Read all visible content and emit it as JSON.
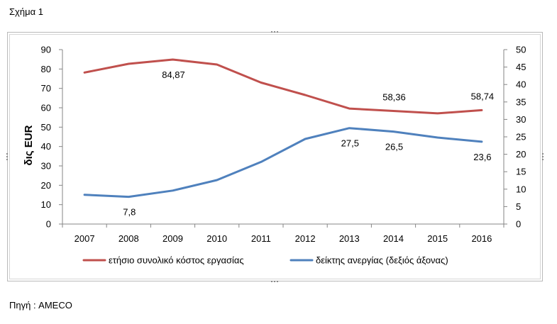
{
  "caption": "Σχήμα 1",
  "source": "Πηγή : AMECO",
  "chart_data": {
    "type": "line",
    "x": [
      "2007",
      "2008",
      "2009",
      "2010",
      "2011",
      "2012",
      "2013",
      "2014",
      "2015",
      "2016"
    ],
    "ylabel": "δις EUR",
    "ylim": [
      0,
      90
    ],
    "yticks": [
      "0",
      "10",
      "20",
      "30",
      "40",
      "50",
      "60",
      "70",
      "80",
      "90"
    ],
    "y2lim": [
      0,
      50
    ],
    "y2ticks": [
      "0",
      "5",
      "10",
      "15",
      "20",
      "25",
      "30",
      "35",
      "40",
      "45",
      "50"
    ],
    "grid": false,
    "legend": "bottom",
    "series": [
      {
        "name": "ετήσιο συνολικό κόστος εργασίας",
        "axis": "left",
        "color": "#C0504D",
        "values": [
          78.2,
          82.7,
          84.87,
          82.3,
          73.0,
          66.6,
          59.6,
          58.36,
          57.1,
          58.74
        ],
        "data_labels": [
          {
            "index": 2,
            "text": "84,87",
            "position": "below"
          },
          {
            "index": 7,
            "text": "58,36",
            "position": "above"
          },
          {
            "index": 9,
            "text": "58,74",
            "position": "above"
          }
        ]
      },
      {
        "name": "δείκτης ανεργίας (δεξιός άξονας)",
        "axis": "right",
        "color": "#4F81BD",
        "values": [
          8.4,
          7.8,
          9.6,
          12.6,
          17.8,
          24.4,
          27.5,
          26.5,
          24.8,
          23.6
        ],
        "data_labels": [
          {
            "index": 1,
            "text": "7,8",
            "position": "below"
          },
          {
            "index": 6,
            "text": "27,5",
            "position": "below"
          },
          {
            "index": 7,
            "text": "26,5",
            "position": "below"
          },
          {
            "index": 9,
            "text": "23,6",
            "position": "below"
          }
        ]
      }
    ]
  }
}
